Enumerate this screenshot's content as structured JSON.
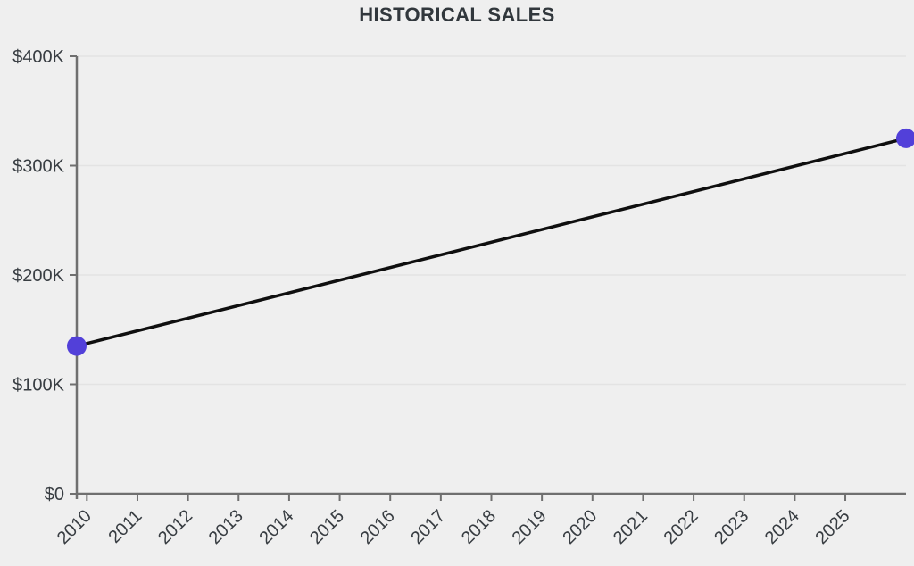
{
  "chart_data": {
    "type": "line",
    "title": "HISTORICAL SALES",
    "series": [
      {
        "name": "historical-sales",
        "line_color": "#0f0f0f",
        "marker_color": "#5240d9",
        "points": [
          {
            "x": 2009.8,
            "value": 135000
          },
          {
            "x": 2026.2,
            "value": 325000
          }
        ]
      }
    ],
    "xlim": [
      2009.8,
      2026.2
    ],
    "ylim": [
      0,
      400000
    ],
    "x_ticks": [
      2010,
      2011,
      2012,
      2013,
      2014,
      2015,
      2016,
      2017,
      2018,
      2019,
      2020,
      2021,
      2022,
      2023,
      2024,
      2025
    ],
    "x_tick_labels": [
      "2010",
      "2011",
      "2012",
      "2013",
      "2014",
      "2015",
      "2016",
      "2017",
      "2018",
      "2019",
      "2020",
      "2021",
      "2022",
      "2023",
      "2024",
      "2025"
    ],
    "y_ticks": [
      0,
      100000,
      200000,
      300000,
      400000
    ],
    "y_tick_labels": [
      "$0",
      "$100K",
      "$200K",
      "$300K",
      "$400K"
    ],
    "grid": "horizontal",
    "legend": "none",
    "colors": {
      "background": "#efefef",
      "axis": "#6f6f6f",
      "grid": "#e3e3e3",
      "tick_label": "#383d42",
      "title": "#31373c"
    }
  }
}
